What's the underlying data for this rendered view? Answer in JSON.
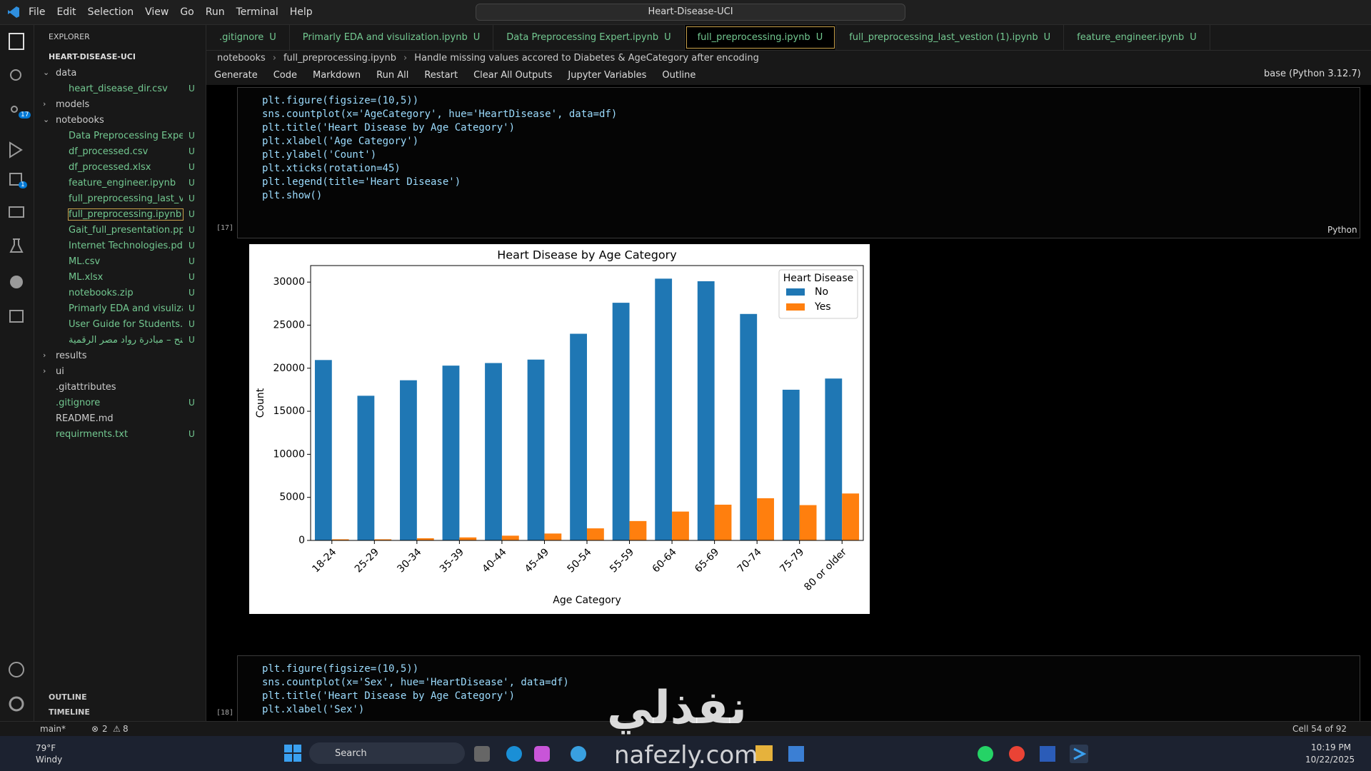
{
  "menu": [
    "File",
    "Edit",
    "Selection",
    "View",
    "Go",
    "Run",
    "Terminal",
    "Help"
  ],
  "search": "Heart-Disease-UCI",
  "activity_badges": [
    "17",
    "1"
  ],
  "explorer": {
    "title": "EXPLORER",
    "root": "HEART-DISEASE-UCI",
    "tree": [
      {
        "name": "data",
        "children": [
          {
            "name": "heart_disease_dir.csv",
            "status": "U"
          }
        ]
      },
      {
        "name": "models",
        "children": []
      },
      {
        "name": "notebooks",
        "children": [
          {
            "name": "Data Preprocessing Expert.i...",
            "status": "U"
          },
          {
            "name": "df_processed.csv",
            "status": "U"
          },
          {
            "name": "df_processed.xlsx",
            "status": "U"
          },
          {
            "name": "feature_engineer.ipynb",
            "status": "U"
          },
          {
            "name": "full_preprocessing_last_vest...",
            "status": "U"
          },
          {
            "name": "full_preprocessing.ipynb",
            "status": "U"
          },
          {
            "name": "Gait_full_presentation.pptx",
            "status": "U"
          },
          {
            "name": "Internet Technologies.pdf",
            "status": "U"
          },
          {
            "name": "ML.csv",
            "status": "U"
          },
          {
            "name": "ML.xlsx",
            "status": "U"
          },
          {
            "name": "notebooks.zip",
            "status": "U"
          },
          {
            "name": "Primarly EDA and visulizati...",
            "status": "U"
          },
          {
            "name": "User Guide for Students.pdf",
            "status": "U"
          },
          {
            "name": "منح – مبادرة رواد مصر الرقمية...",
            "status": "U"
          }
        ]
      },
      {
        "name": "results",
        "children": []
      },
      {
        "name": "ui",
        "children": []
      },
      {
        "name": ".gitattributes"
      },
      {
        "name": ".gitignore",
        "status": "U"
      },
      {
        "name": "README.md"
      },
      {
        "name": "requirments.txt",
        "status": "U"
      }
    ],
    "panels": [
      "OUTLINE",
      "TIMELINE"
    ]
  },
  "tabs": [
    {
      "name": ".gitignore",
      "status": "U"
    },
    {
      "name": "Primarly EDA and visulization.ipynb",
      "status": "U"
    },
    {
      "name": "Data Preprocessing Expert.ipynb",
      "status": "U"
    },
    {
      "name": "full_preprocessing.ipynb",
      "status": "U"
    },
    {
      "name": "full_preprocessing_last_vestion (1).ipynb",
      "status": "U"
    },
    {
      "name": "feature_engineer.ipynb",
      "status": "U"
    }
  ],
  "breadcrumb": [
    "notebooks",
    "full_preprocessing.ipynb",
    "Handle missing values accored to Diabetes & AgeCategory after encoding"
  ],
  "toolbar": [
    "Generate",
    "Code",
    "Markdown",
    "Run All",
    "Restart",
    "Clear All Outputs",
    "Jupyter Variables",
    "Outline"
  ],
  "kernel": "base (Python 3.12.7)",
  "cells": [
    {
      "exec": "[17]",
      "language": "Python",
      "code": [
        "plt.figure(figsize=(10,5))",
        "sns.countplot(x='AgeCategory', hue='HeartDisease', data=df)",
        "plt.title('Heart Disease by Age Category')",
        "plt.xlabel('Age Category')",
        "plt.ylabel('Count')",
        "plt.xticks(rotation=45)",
        "plt.legend(title='Heart Disease')",
        "plt.show()"
      ]
    },
    {
      "exec": "[18]",
      "code": [
        "plt.figure(figsize=(10,5))",
        "sns.countplot(x='Sex', hue='HeartDisease', data=df)",
        "plt.title('Heart Disease by Age Category')",
        "plt.xlabel('Sex')"
      ]
    }
  ],
  "chart_data": {
    "type": "bar",
    "title": "Heart Disease by Age Category",
    "x_label": "Age Category",
    "y_label": "Count",
    "categories": [
      "18-24",
      "25-29",
      "30-34",
      "35-39",
      "40-44",
      "45-49",
      "50-54",
      "55-59",
      "60-64",
      "65-69",
      "70-74",
      "75-79",
      "80 or older"
    ],
    "series": [
      {
        "name": "No",
        "color": "#1f77b4",
        "values": [
          20950,
          16800,
          18600,
          20300,
          20600,
          21000,
          24000,
          27600,
          30400,
          30100,
          26300,
          17500,
          18800
        ]
      },
      {
        "name": "Yes",
        "color": "#ff7f0e",
        "values": [
          130,
          130,
          250,
          350,
          550,
          800,
          1400,
          2250,
          3350,
          4150,
          4900,
          4100,
          5450
        ]
      }
    ],
    "legend_title": "Heart Disease",
    "legend": "upper right",
    "ylim": [
      0,
      31920
    ],
    "yticks": [
      0,
      5000,
      10000,
      15000,
      20000,
      25000,
      30000
    ]
  },
  "status": {
    "branch": "main*",
    "errors": "2",
    "warnings": "8",
    "cell": "Cell 54 of 92"
  },
  "taskbar": {
    "temperature": "79°F",
    "weather": "Windy",
    "search": "Search",
    "time": "10:19 PM",
    "date": "10/22/2025"
  },
  "watermark": {
    "arabic": "نفذلي",
    "latin": "nafezly.com"
  }
}
